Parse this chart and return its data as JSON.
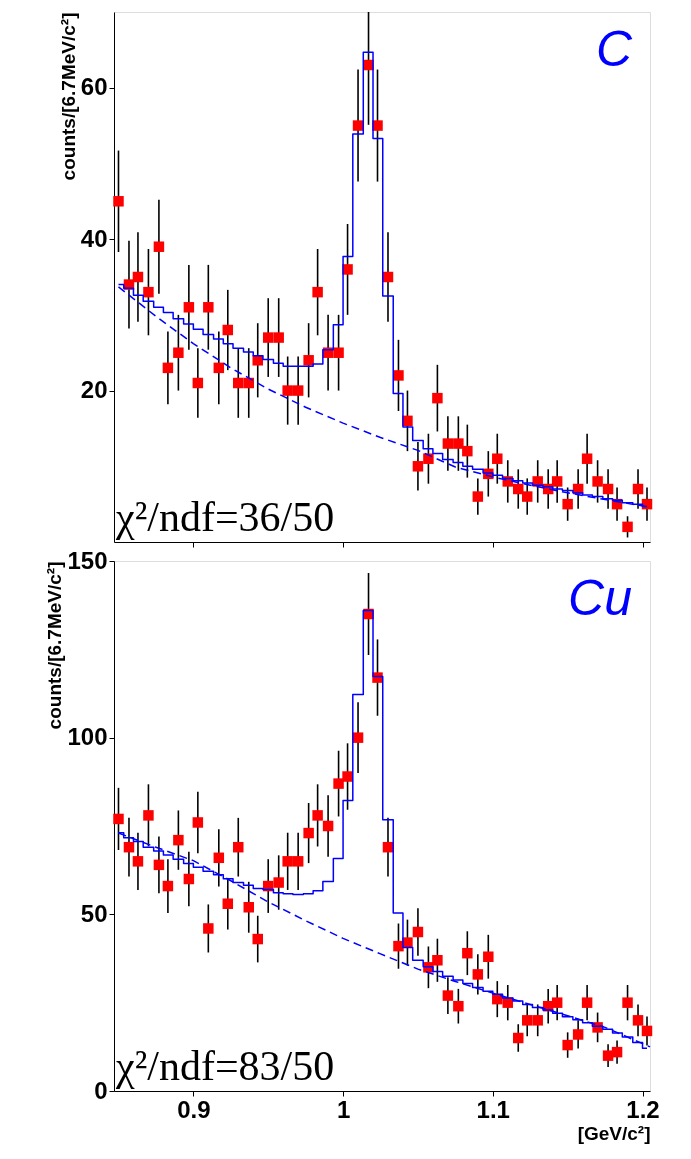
{
  "chart_data": [
    {
      "type": "scatter",
      "title": "C",
      "ylabel": "counts/[6.7MeV/c²]",
      "annotations": [
        "χ²/ndf=36/50"
      ],
      "xlim": [
        0.847,
        1.205
      ],
      "ylim": [
        0,
        70
      ],
      "xticks": [
        0.9,
        1,
        1.1,
        1.2
      ],
      "yticks": [
        20,
        40,
        60
      ],
      "tick_labels": "y",
      "x": [
        0.85,
        0.857,
        0.863,
        0.87,
        0.877,
        0.883,
        0.89,
        0.897,
        0.903,
        0.91,
        0.917,
        0.923,
        0.93,
        0.937,
        0.943,
        0.95,
        0.957,
        0.963,
        0.97,
        0.977,
        0.983,
        0.99,
        0.997,
        1.003,
        1.01,
        1.017,
        1.023,
        1.03,
        1.037,
        1.043,
        1.05,
        1.057,
        1.063,
        1.07,
        1.077,
        1.083,
        1.09,
        1.097,
        1.103,
        1.11,
        1.117,
        1.123,
        1.13,
        1.137,
        1.143,
        1.15,
        1.157,
        1.163,
        1.17,
        1.177,
        1.183,
        1.19,
        1.197,
        1.203
      ],
      "series": [
        {
          "marker": "square",
          "color": "#ff0000",
          "values": [
            45,
            34,
            35,
            33,
            39,
            23,
            25,
            31,
            21,
            31,
            23,
            28,
            21,
            21,
            24,
            27,
            27,
            20,
            20,
            24,
            33,
            25,
            25,
            36,
            55,
            63,
            55,
            35,
            22,
            16,
            10,
            11,
            19,
            13,
            13,
            12,
            6,
            9,
            11,
            8,
            7,
            6,
            8,
            7,
            8,
            5,
            7,
            11,
            8,
            7,
            5,
            2,
            7,
            5
          ],
          "errors": [
            6.7,
            5.8,
            5.9,
            5.7,
            6.2,
            4.8,
            5.0,
            5.6,
            4.6,
            5.6,
            4.8,
            5.3,
            4.6,
            4.6,
            4.9,
            5.2,
            5.2,
            4.5,
            4.5,
            4.9,
            5.7,
            5.0,
            5.0,
            6.0,
            7.4,
            [
              55.1,
              70
            ],
            7.4,
            5.9,
            4.7,
            4.0,
            3.2,
            3.3,
            4.4,
            3.6,
            3.6,
            3.5,
            2.4,
            3.0,
            3.3,
            2.8,
            2.6,
            2.4,
            2.8,
            2.6,
            2.8,
            2.2,
            2.6,
            3.3,
            2.8,
            2.6,
            2.2,
            1.4,
            2.6,
            2.2
          ]
        },
        {
          "type": "step",
          "color": "#0000ff",
          "values": [
            34.0,
            33.5,
            32.6,
            31.8,
            31.0,
            30.3,
            29.5,
            28.8,
            28.1,
            27.4,
            26.8,
            26.2,
            25.6,
            25.1,
            24.6,
            24.1,
            23.6,
            23.2,
            23.2,
            23.2,
            23.5,
            25.4,
            28.7,
            37.7,
            53.9,
            64.7,
            53.3,
            32.5,
            19.6,
            15.2,
            13.4,
            12.3,
            11.7,
            10.9,
            10.5,
            10.0,
            9.6,
            9.1,
            8.8,
            8.4,
            8.1,
            7.8,
            7.5,
            7.3,
            7.0,
            6.8,
            6.5,
            6.2,
            6.0,
            5.7,
            5.5,
            5.2,
            5.0,
            4.7
          ]
        },
        {
          "type": "line",
          "line_style": "dashed",
          "color": "#0000ff",
          "x": [
            0.85,
            0.875,
            0.9,
            0.925,
            0.95,
            0.975,
            1.0,
            1.025,
            1.05,
            1.075,
            1.1,
            1.125,
            1.15,
            1.175,
            1.205
          ],
          "values": [
            33.7,
            29.8,
            26.2,
            23.0,
            20.2,
            17.8,
            15.7,
            13.8,
            12.1,
            9.9,
            8.6,
            7.5,
            6.5,
            5.6,
            4.6
          ]
        }
      ]
    },
    {
      "type": "scatter",
      "title": "Cu",
      "xlabel": "[GeV/c²]",
      "ylabel": "counts/[6.7MeV/c²]",
      "annotations": [
        "χ²/ndf=83/50"
      ],
      "xlim": [
        0.847,
        1.205
      ],
      "ylim": [
        0,
        150
      ],
      "xticks": [
        0.9,
        1,
        1.1,
        1.2
      ],
      "yticks": [
        0,
        50,
        100,
        150
      ],
      "x": [
        0.85,
        0.857,
        0.863,
        0.87,
        0.877,
        0.883,
        0.89,
        0.897,
        0.903,
        0.91,
        0.917,
        0.923,
        0.93,
        0.937,
        0.943,
        0.95,
        0.957,
        0.963,
        0.97,
        0.977,
        0.983,
        0.99,
        0.997,
        1.003,
        1.01,
        1.017,
        1.023,
        1.03,
        1.037,
        1.043,
        1.05,
        1.057,
        1.063,
        1.07,
        1.077,
        1.083,
        1.09,
        1.097,
        1.103,
        1.11,
        1.117,
        1.123,
        1.13,
        1.137,
        1.143,
        1.15,
        1.157,
        1.163,
        1.17,
        1.177,
        1.183,
        1.19,
        1.197,
        1.203
      ],
      "series": [
        {
          "marker": "square",
          "color": "#ff0000",
          "values": [
            77,
            69,
            65,
            78,
            64,
            58,
            71,
            60,
            76,
            46,
            66,
            53,
            69,
            52,
            43,
            58,
            59,
            65,
            65,
            73,
            78,
            75,
            87,
            89,
            100,
            135,
            117,
            69,
            41,
            42,
            45,
            35,
            37,
            27,
            24,
            39,
            33,
            38,
            26,
            25,
            15,
            20,
            20,
            24,
            25,
            13,
            16,
            25,
            18,
            10,
            11,
            25,
            20,
            17
          ],
          "errors": [
            8.8,
            8.3,
            8.1,
            8.8,
            8.0,
            7.6,
            8.4,
            7.7,
            8.7,
            6.8,
            8.1,
            7.3,
            8.3,
            7.2,
            6.6,
            7.6,
            7.7,
            8.1,
            8.1,
            8.5,
            8.8,
            8.7,
            9.3,
            9.4,
            10.0,
            11.6,
            10.8,
            8.3,
            6.4,
            6.5,
            6.7,
            5.9,
            6.1,
            5.2,
            4.9,
            6.2,
            5.7,
            6.2,
            5.1,
            5.0,
            3.9,
            4.5,
            4.5,
            4.9,
            5.0,
            3.6,
            4.0,
            5.0,
            4.2,
            3.2,
            3.3,
            5.0,
            4.5,
            4.1
          ]
        },
        {
          "type": "step",
          "color": "#0000ff",
          "values": [
            73.1,
            71.7,
            70.6,
            69.0,
            67.9,
            66.8,
            65.6,
            64.4,
            63.3,
            62.2,
            61.2,
            60.1,
            59.0,
            58.2,
            57.3,
            57.0,
            56.1,
            55.8,
            55.6,
            55.8,
            56.7,
            59.3,
            65.8,
            82.2,
            112.2,
            136.0,
            117.3,
            76.8,
            50.4,
            40.6,
            37.0,
            35.2,
            33.8,
            32.5,
            31.4,
            30.4,
            29.3,
            28.2,
            27.4,
            26.3,
            25.5,
            24.5,
            23.6,
            22.9,
            22.0,
            21.0,
            20.2,
            19.3,
            18.3,
            17.5,
            16.4,
            15.3,
            13.7,
            12.1
          ]
        },
        {
          "type": "line",
          "line_style": "dashed",
          "color": "#0000ff",
          "x": [
            0.85,
            0.875,
            0.9,
            0.925,
            0.95,
            0.975,
            1.0,
            1.025,
            1.05,
            1.075,
            1.1,
            1.125,
            1.15,
            1.175,
            1.205
          ],
          "values": [
            73.0,
            69.0,
            65.2,
            59.5,
            53.5,
            48.2,
            43.2,
            38.8,
            34.5,
            31.0,
            27.7,
            24.5,
            21.3,
            18.0,
            12.5
          ]
        }
      ]
    }
  ]
}
